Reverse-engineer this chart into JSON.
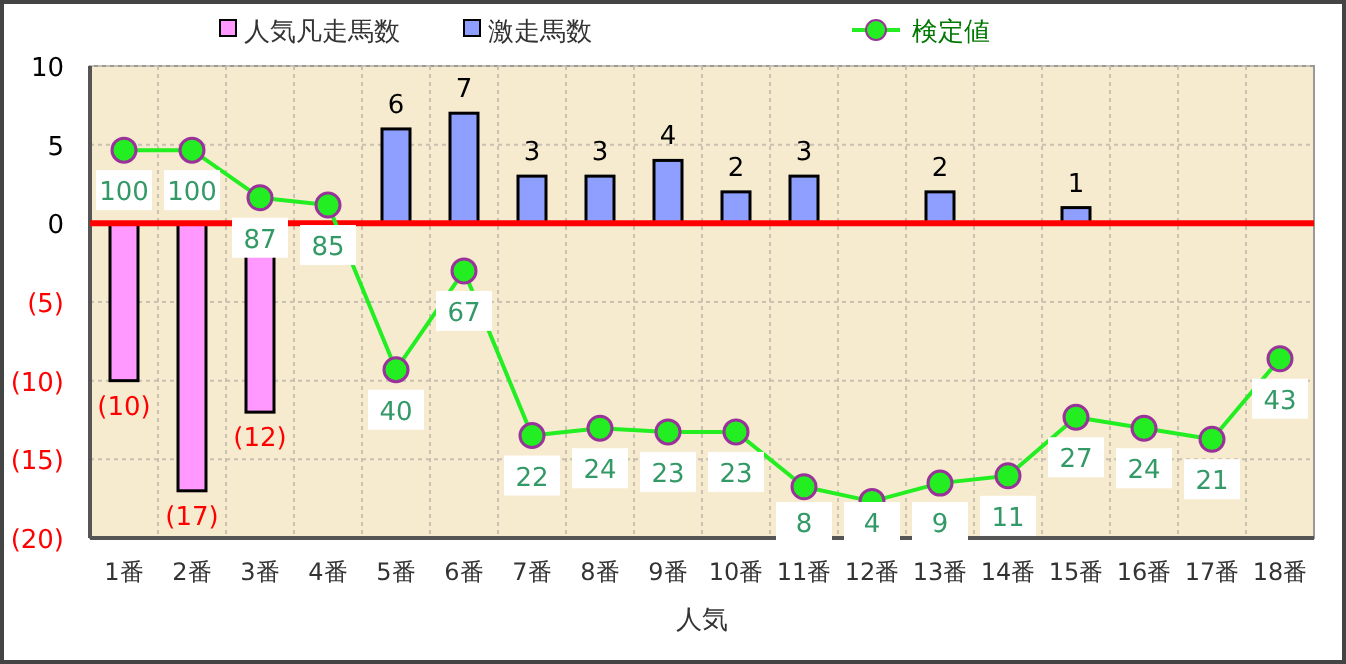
{
  "chart_data": {
    "type": "bar",
    "xlabel": "人気",
    "categories": [
      "1番",
      "2番",
      "3番",
      "4番",
      "5番",
      "6番",
      "7番",
      "8番",
      "9番",
      "10番",
      "11番",
      "12番",
      "13番",
      "14番",
      "15番",
      "16番",
      "17番",
      "18番"
    ],
    "stacked": true,
    "series": [
      {
        "name": "人気凡走馬数",
        "color": "#ff99ff",
        "values": [
          -10,
          -17,
          -12,
          null,
          null,
          null,
          null,
          null,
          null,
          null,
          null,
          null,
          null,
          null,
          null,
          null,
          null,
          null
        ],
        "value_labels": [
          "(10)",
          "(17)",
          "(12)",
          null,
          null,
          null,
          null,
          null,
          null,
          null,
          null,
          null,
          null,
          null,
          null,
          null,
          null,
          null
        ]
      },
      {
        "name": "激走馬数",
        "color": "#8f9fff",
        "values": [
          null,
          null,
          null,
          null,
          6,
          7,
          3,
          3,
          4,
          2,
          3,
          null,
          2,
          null,
          1,
          null,
          null,
          null
        ],
        "value_labels": [
          null,
          null,
          null,
          null,
          "6",
          "7",
          "3",
          "3",
          "4",
          "2",
          "3",
          null,
          "2",
          null,
          "1",
          null,
          null,
          null
        ]
      },
      {
        "name": "検定値",
        "type": "line",
        "axis": "y2",
        "color": "#22ee22",
        "values": [
          100,
          100,
          87,
          85,
          40,
          67,
          22,
          24,
          23,
          23,
          8,
          4,
          9,
          11,
          27,
          24,
          21,
          43
        ],
        "value_labels": [
          "100",
          "100",
          "87",
          "85",
          "40",
          "67",
          "22",
          "24",
          "23",
          "23",
          "8",
          "4",
          "9",
          "11",
          "27",
          "24",
          "21",
          "43"
        ]
      }
    ],
    "ylim": [
      -20,
      10
    ],
    "yticks": [
      10,
      5,
      0,
      {
        "value": -5,
        "label": "(5)"
      },
      {
        "value": -10,
        "label": "(10)"
      },
      {
        "value": -15,
        "label": "(15)"
      },
      {
        "value": -20,
        "label": "(20)"
      }
    ],
    "y2lim": [
      -6,
      123
    ],
    "ref_lines": [
      {
        "axis": "y",
        "value": 0,
        "color": "#ff0000"
      }
    ],
    "grid": true,
    "legend": "top",
    "marker": "circle",
    "line_style": "solid"
  }
}
